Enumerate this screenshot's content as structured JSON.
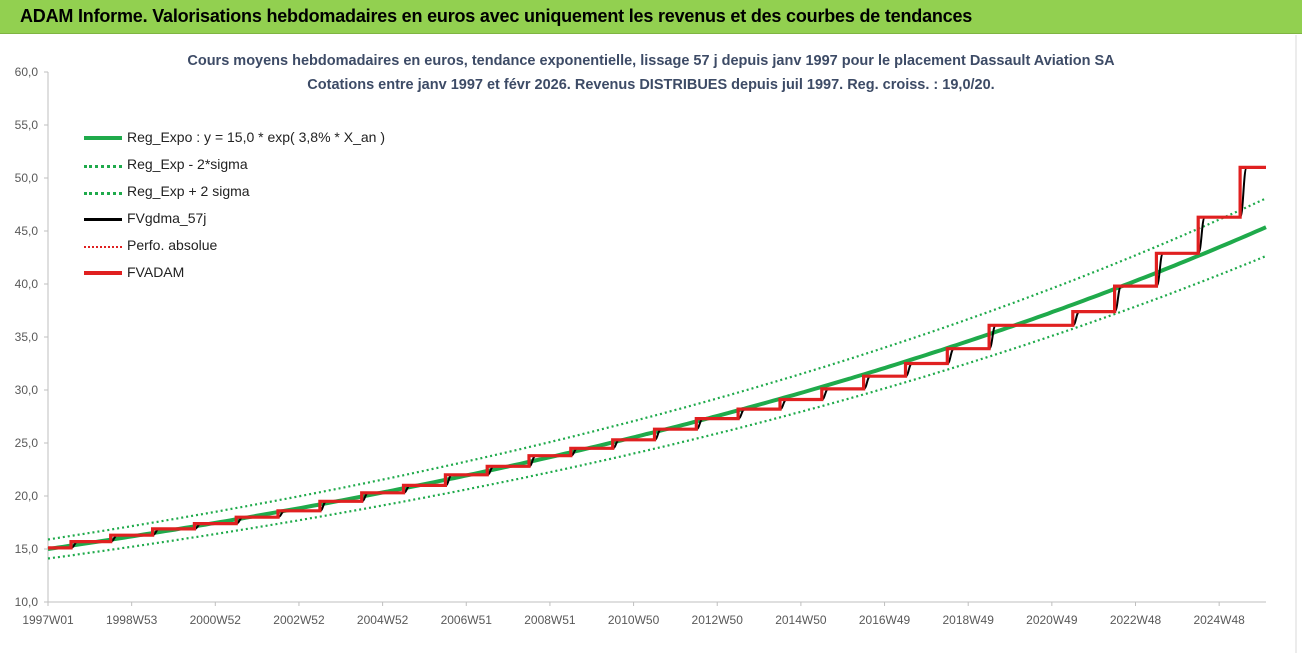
{
  "header": {
    "title": "ADAM Informe. Valorisations hebdomadaires en euros avec uniquement les revenus et des courbes de tendances"
  },
  "chart_data": {
    "type": "line",
    "title": "Cours moyens hebdomadaires en euros, tendance exponentielle, lissage 57 j depuis janv 1997 pour le placement Dassault Aviation SA",
    "subtitle": "Cotations entre janv 1997 et févr 2026. Revenus DISTRIBUES depuis juil 1997. Reg. croiss. : 19,0/20.",
    "xlabel": "",
    "ylabel": "",
    "ylim": [
      10,
      60
    ],
    "y_ticks": [
      "10,0",
      "15,0",
      "20,0",
      "25,0",
      "30,0",
      "35,0",
      "40,0",
      "45,0",
      "50,0",
      "55,0",
      "60,0"
    ],
    "x_ticks": [
      "1997W01",
      "1998W53",
      "2000W52",
      "2002W52",
      "2004W52",
      "2006W51",
      "2008W51",
      "2010W50",
      "2012W50",
      "2014W50",
      "2016W49",
      "2018W49",
      "2020W49",
      "2022W48",
      "2024W48"
    ],
    "x_range_years": [
      1997.0,
      2026.12
    ],
    "grid": false,
    "legend_position": "top-left",
    "regression": {
      "a": 15.0,
      "rate": 0.038,
      "sigma_factor_minus": 0.94,
      "sigma_factor_plus": 1.06
    },
    "step_series": {
      "times": [
        1997.0,
        1997.55,
        1998.5,
        1999.5,
        2000.5,
        2001.5,
        2002.5,
        2003.5,
        2004.5,
        2005.5,
        2006.5,
        2007.5,
        2008.5,
        2009.5,
        2010.5,
        2011.5,
        2012.5,
        2013.5,
        2014.5,
        2015.5,
        2016.5,
        2017.5,
        2018.5,
        2019.5,
        2020.5,
        2021.5,
        2022.5,
        2023.5,
        2024.5,
        2025.5,
        2026.12
      ],
      "values": [
        15.1,
        15.7,
        16.3,
        16.9,
        17.4,
        18.0,
        18.6,
        19.5,
        20.3,
        21.0,
        22.0,
        22.8,
        23.8,
        24.5,
        25.3,
        26.3,
        27.3,
        28.2,
        29.1,
        30.1,
        31.3,
        32.5,
        33.9,
        36.1,
        36.1,
        37.4,
        39.8,
        42.9,
        46.3,
        51.0,
        51.0
      ]
    },
    "series": [
      {
        "name": "Reg_Expo : y = 15,0 * exp( 3,8% *  X_an )",
        "color": "#1faa4b",
        "style": "solid"
      },
      {
        "name": "Reg_Exp - 2*sigma",
        "color": "#1faa4b",
        "style": "dotted"
      },
      {
        "name": "Reg_Exp + 2 sigma",
        "color": "#1faa4b",
        "style": "dotted"
      },
      {
        "name": "FVgdma_57j",
        "color": "#000000",
        "style": "solid"
      },
      {
        "name": "Perfo. absolue",
        "color": "#e02020",
        "style": "dotted"
      },
      {
        "name": "FVADAM",
        "color": "#e02020",
        "style": "solid"
      }
    ]
  }
}
